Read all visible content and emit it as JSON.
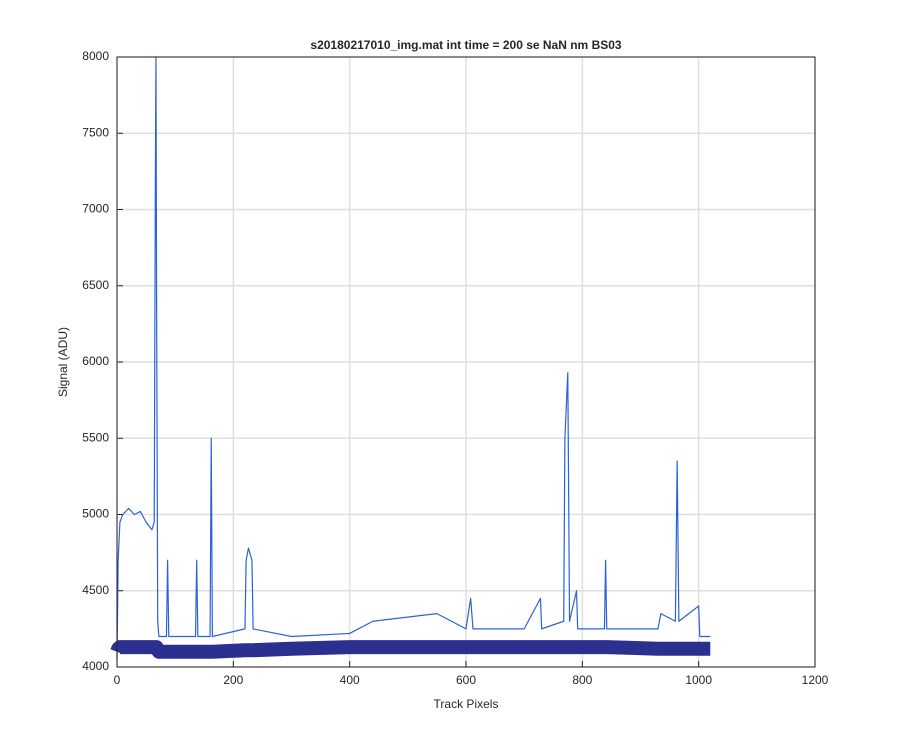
{
  "chart_data": {
    "type": "line",
    "title": "s20180217010_img.mat int time = 200 se  NaN nm BS03",
    "x_label": "Track Pixels",
    "y_label": "Signal (ADU)",
    "x": [
      0,
      2,
      5,
      10,
      20,
      30,
      40,
      50,
      60,
      64,
      66,
      67,
      68,
      70,
      72,
      85,
      87,
      89,
      135,
      137,
      139,
      160,
      162,
      164,
      220,
      222,
      226,
      232,
      234,
      300,
      400,
      440,
      550,
      600,
      608,
      612,
      700,
      728,
      730,
      768,
      770,
      775,
      778,
      790,
      792,
      838,
      840,
      842,
      930,
      935,
      960,
      963,
      966,
      1000,
      1002,
      1020
    ],
    "series": [
      {
        "color": "#2a62d9",
        "values": [
          4050,
          4700,
          4950,
          5000,
          5040,
          5000,
          5020,
          4950,
          4900,
          4950,
          7250,
          8000,
          6500,
          4300,
          4200,
          4200,
          4700,
          4200,
          4200,
          4700,
          4200,
          4200,
          5500,
          4200,
          4250,
          4700,
          4780,
          4700,
          4250,
          4200,
          4220,
          4300,
          4350,
          4250,
          4450,
          4250,
          4250,
          4450,
          4250,
          4300,
          5500,
          5930,
          4300,
          4500,
          4250,
          4250,
          4700,
          4250,
          4250,
          4350,
          4300,
          5350,
          4300,
          4400,
          4200,
          4200
        ]
      },
      {
        "color": "#2b2f8f",
        "values": [
          4100,
          4120,
          4130,
          4130,
          4130,
          4130,
          4130,
          4130,
          4130,
          4130,
          4130,
          4130,
          4130,
          4110,
          4100,
          4100,
          4100,
          4100,
          4100,
          4100,
          4100,
          4100,
          4100,
          4100,
          4110,
          4110,
          4110,
          4110,
          4110,
          4120,
          4130,
          4130,
          4130,
          4130,
          4130,
          4130,
          4130,
          4130,
          4130,
          4130,
          4130,
          4130,
          4130,
          4130,
          4130,
          4130,
          4130,
          4130,
          4120,
          4120,
          4120,
          4120,
          4120,
          4120,
          4120,
          4120
        ]
      }
    ],
    "xlim": [
      0,
      1200
    ],
    "xticks": [
      0,
      200,
      400,
      600,
      800,
      1000,
      1200
    ],
    "ylim": [
      4000,
      8000
    ],
    "yticks": [
      4000,
      4500,
      5000,
      5500,
      6000,
      6500,
      7000,
      7500,
      8000
    ],
    "grid": true
  }
}
